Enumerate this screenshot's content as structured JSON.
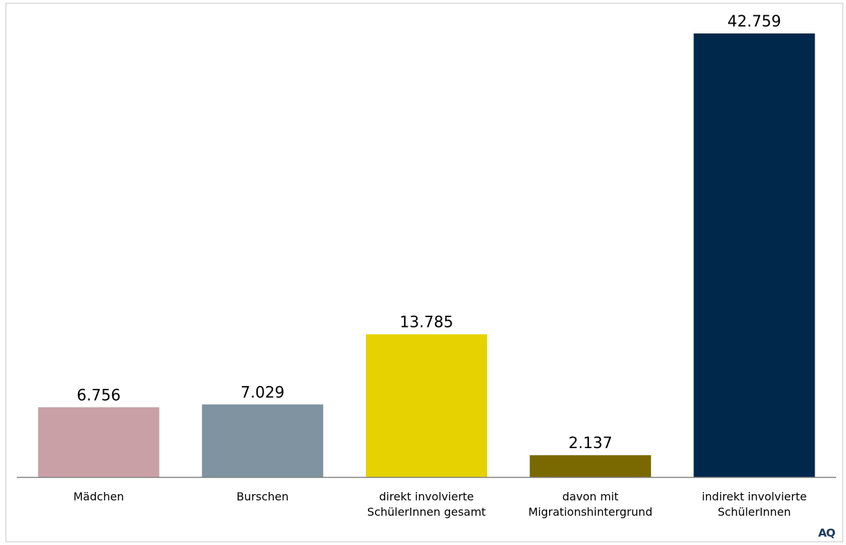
{
  "chart_data": {
    "type": "bar",
    "categories": [
      [
        "Mädchen"
      ],
      [
        "Burschen"
      ],
      [
        "direkt involvierte",
        "SchülerInnen gesamt"
      ],
      [
        "davon mit",
        "Migrationshintergrund"
      ],
      [
        "indirekt involvierte",
        "SchülerInnen"
      ]
    ],
    "values": [
      6756,
      7029,
      13785,
      2137,
      42759
    ],
    "value_labels": [
      "6.756",
      "7.029",
      "13.785",
      "2.137",
      "42.759"
    ],
    "colors": [
      "#c9a0a6",
      "#7f93a0",
      "#e6d200",
      "#7a6800",
      "#00284a"
    ],
    "title": "",
    "xlabel": "",
    "ylabel": "",
    "ylim": [
      0,
      45000
    ],
    "grid": false,
    "legend": "none"
  },
  "logo": {
    "text": "AQ"
  }
}
